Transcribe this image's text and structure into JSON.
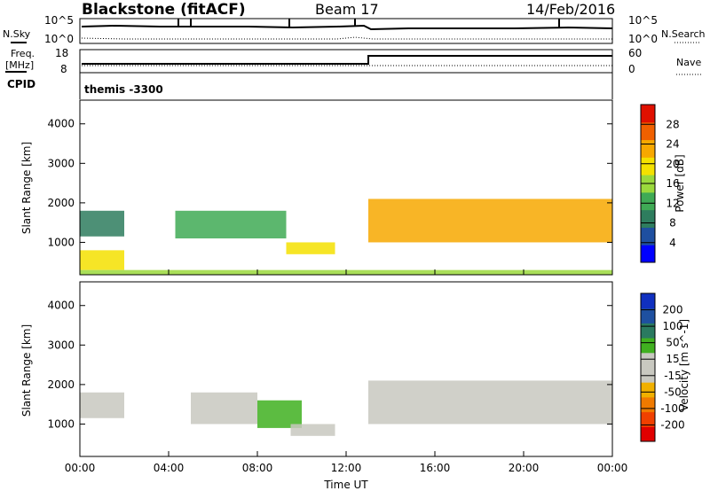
{
  "header": {
    "station": "Blackstone (fitACF)",
    "beam": "Beam 17",
    "date": "14/Feb/2016"
  },
  "param_strips": {
    "nsky_label": "N.Sky",
    "nsearch_label": "N.Search",
    "noise_ticks_left": [
      "10^5",
      "10^0"
    ],
    "noise_ticks_right": [
      "10^5",
      "10^0"
    ],
    "freq_label_1": "Freq.",
    "freq_label_2": "[MHz]",
    "freq_ticks": [
      "18",
      "8"
    ],
    "nave_label": "Nave",
    "nave_ticks": [
      "60",
      "0"
    ],
    "cpid_label": "CPID",
    "cpid_value": "themis -3300"
  },
  "colors": {
    "power_scale": [
      "#0000ff",
      "#1e4fa0",
      "#2e7d5e",
      "#3faa55",
      "#9bd93c",
      "#f4e100",
      "#f7a800",
      "#f06000",
      "#e01000"
    ],
    "velocity_scale": [
      "#e00000",
      "#f04000",
      "#f07a00",
      "#f0b000",
      "#c8c8c0",
      "#c8c8c0",
      "#40b020",
      "#2a7a60",
      "#1e50a0",
      "#1030c0"
    ]
  },
  "chart_data": [
    {
      "type": "heatmap",
      "panel": "power",
      "ylabel": "Slant Range [km]",
      "yticks": [
        "4000",
        "3000",
        "2000",
        "1000"
      ],
      "ylim": [
        180,
        4600
      ],
      "colorbar_label": "Power [dB]",
      "colorbar_ticks": [
        "28",
        "24",
        "20",
        "16",
        "12",
        "8",
        "4"
      ],
      "colorbar_range": [
        0,
        32
      ],
      "echo_regions": [
        {
          "t_start": 0.0,
          "t_end": 2.0,
          "range_low": 1150,
          "range_high": 1800,
          "power_db": 10
        },
        {
          "t_start": 0.0,
          "t_end": 2.0,
          "range_low": 300,
          "range_high": 800,
          "power_db": 18
        },
        {
          "t_start": 4.3,
          "t_end": 9.3,
          "range_low": 1100,
          "range_high": 1800,
          "power_db": 14
        },
        {
          "t_start": 9.3,
          "t_end": 11.5,
          "range_low": 700,
          "range_high": 1000,
          "power_db": 20
        },
        {
          "t_start": 13.0,
          "t_end": 24.0,
          "range_low": 1000,
          "range_high": 2100,
          "power_db": 24
        },
        {
          "t_start": 0.0,
          "t_end": 24.0,
          "range_low": 180,
          "range_high": 300,
          "power_db": 16
        }
      ]
    },
    {
      "type": "heatmap",
      "panel": "velocity",
      "ylabel": "Slant Range [km]",
      "yticks": [
        "4000",
        "3000",
        "2000",
        "1000"
      ],
      "ylim": [
        180,
        4600
      ],
      "colorbar_label": "Velocity [m s^-1]",
      "colorbar_ticks": [
        "200",
        "100",
        "50",
        "15",
        "-15",
        "-50",
        "-100",
        "-200"
      ],
      "colorbar_range": [
        -250,
        250
      ],
      "xlabel": "Time UT",
      "xticks": [
        "00:00",
        "04:00",
        "08:00",
        "12:00",
        "16:00",
        "20:00",
        "00:00"
      ],
      "xlim": [
        0,
        24
      ],
      "echo_regions": [
        {
          "t_start": 0.0,
          "t_end": 2.0,
          "range_low": 1150,
          "range_high": 1800,
          "velocity": 0
        },
        {
          "t_start": 5.0,
          "t_end": 8.0,
          "range_low": 1000,
          "range_high": 1800,
          "velocity": -40
        },
        {
          "t_start": 8.0,
          "t_end": 10.0,
          "range_low": 900,
          "range_high": 1600,
          "velocity": 60
        },
        {
          "t_start": 9.5,
          "t_end": 11.5,
          "range_low": 700,
          "range_high": 1000,
          "velocity": -30
        },
        {
          "t_start": 13.0,
          "t_end": 24.0,
          "range_low": 1000,
          "range_high": 2100,
          "velocity": 0
        }
      ]
    }
  ]
}
